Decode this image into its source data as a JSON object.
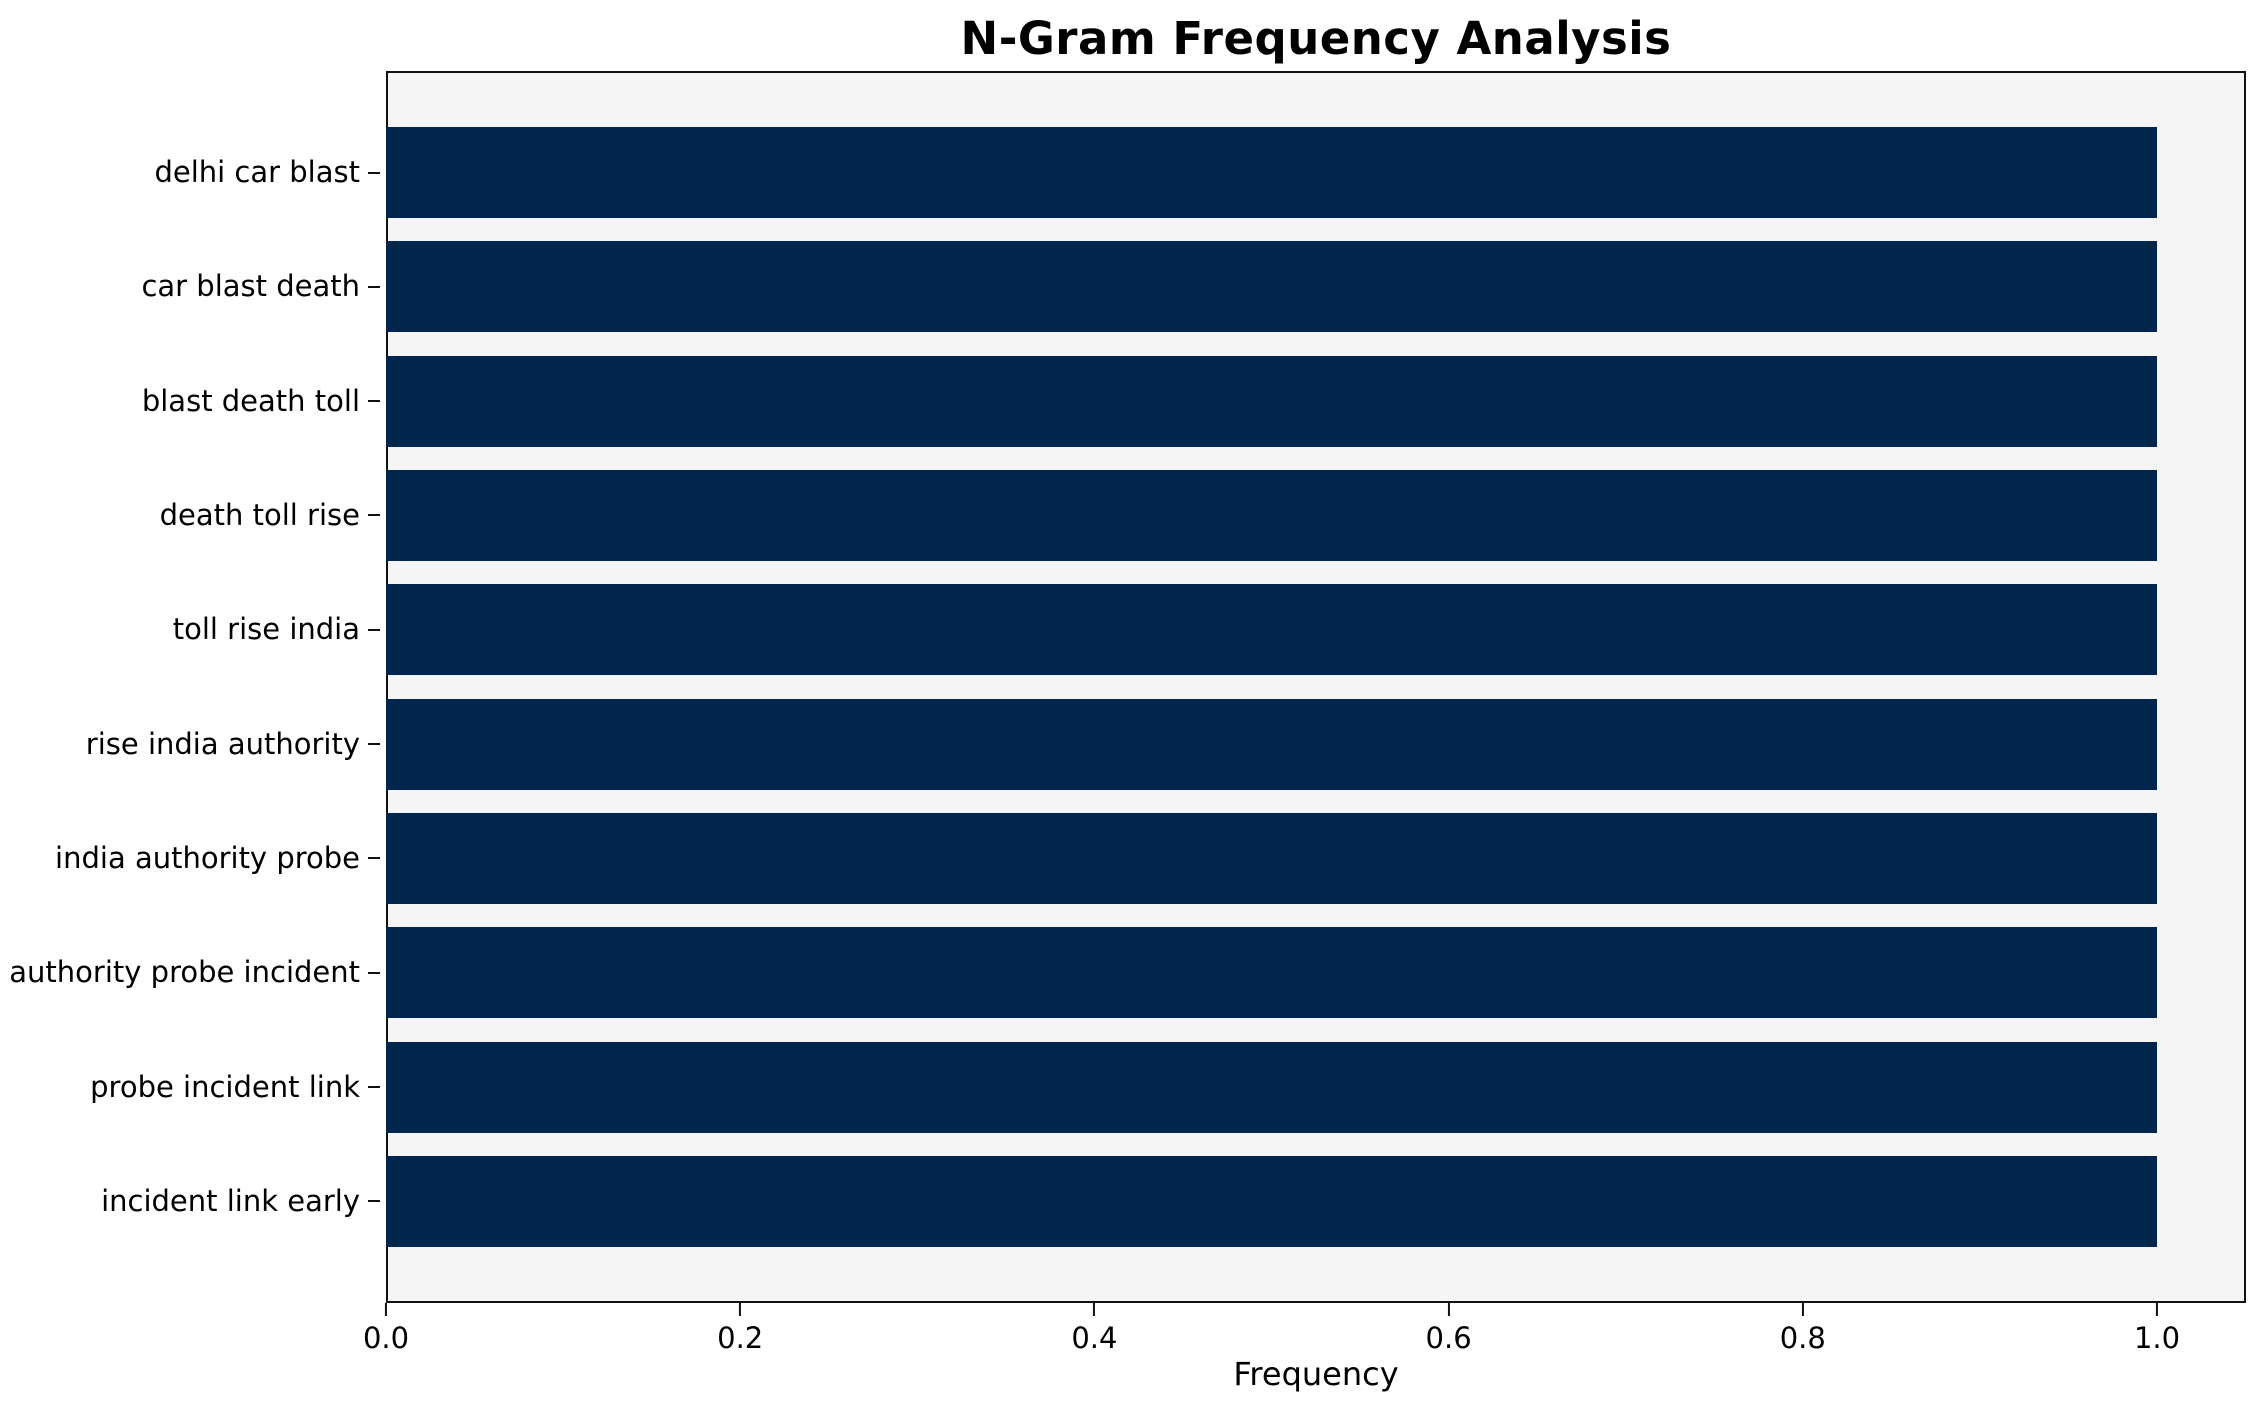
{
  "chart_data": {
    "type": "bar",
    "orientation": "horizontal",
    "title": "N-Gram Frequency Analysis",
    "xlabel": "Frequency",
    "ylabel": "",
    "categories": [
      "delhi car blast",
      "car blast death",
      "blast death toll",
      "death toll rise",
      "toll rise india",
      "rise india authority",
      "india authority probe",
      "authority probe incident",
      "probe incident link",
      "incident link early"
    ],
    "values": [
      1.0,
      1.0,
      1.0,
      1.0,
      1.0,
      1.0,
      1.0,
      1.0,
      1.0,
      1.0
    ],
    "xlim": [
      0.0,
      1.05
    ],
    "xticks": [
      {
        "value": 0.0,
        "label": "0.0"
      },
      {
        "value": 0.2,
        "label": "0.2"
      },
      {
        "value": 0.4,
        "label": "0.4"
      },
      {
        "value": 0.6,
        "label": "0.6"
      },
      {
        "value": 0.8,
        "label": "0.8"
      },
      {
        "value": 1.0,
        "label": "1.0"
      }
    ],
    "grid": false,
    "legend": null,
    "bar_height_fraction": 0.8,
    "colors": {
      "bar": "#02254e",
      "plot_bg": "#f5f5f5",
      "figure_bg": "#ffffff",
      "spine": "#111111",
      "text": "#000000"
    }
  }
}
